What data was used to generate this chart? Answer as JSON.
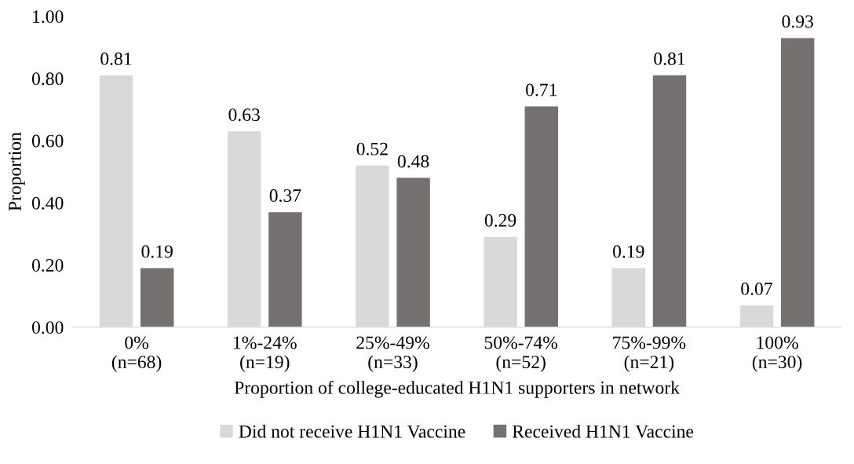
{
  "chart_data": {
    "type": "bar",
    "xlabel": "Proportion of college-educated H1N1 supporters in network",
    "ylabel": "Proportion",
    "categories": [
      "0%\n(n=68)",
      "1%-24%\n(n=19)",
      "25%-49%\n(n=33)",
      "50%-74%\n(n=52)",
      "75%-99%\n(n=21)",
      "100%\n(n=30)"
    ],
    "series": [
      {
        "name": "Did not receive H1N1 Vaccine",
        "color": "#d9d9d9",
        "values": [
          0.81,
          0.63,
          0.52,
          0.29,
          0.19,
          0.07
        ]
      },
      {
        "name": "Received H1N1 Vaccine",
        "color": "#767171",
        "values": [
          0.19,
          0.37,
          0.48,
          0.71,
          0.81,
          0.93
        ]
      }
    ],
    "ylim": [
      0,
      1
    ],
    "yticks": [
      {
        "value": 0,
        "label": "0.00"
      },
      {
        "value": 0.2,
        "label": "0.20"
      },
      {
        "value": 0.4,
        "label": "0.40"
      },
      {
        "value": 0.6,
        "label": "0.60"
      },
      {
        "value": 0.8,
        "label": "0.80"
      },
      {
        "value": 1,
        "label": "1.00"
      }
    ],
    "data_labels": true,
    "grid": false,
    "legend": "bottom"
  }
}
